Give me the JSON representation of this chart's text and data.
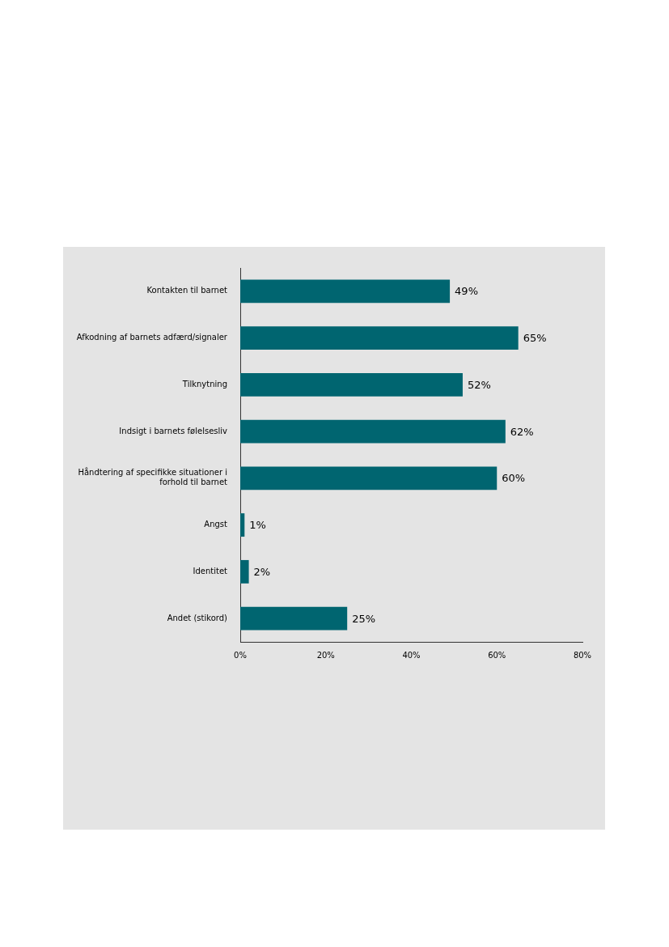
{
  "chart_data": {
    "type": "bar",
    "orientation": "horizontal",
    "categories": [
      "Kontakten til barnet",
      "Afkodning af barnets adfærd/signaler",
      "Tilknytning",
      "Indsigt i barnets følelsesliv",
      "Håndtering af specifikke situationer i forhold til barnet",
      "Angst",
      "Identitet",
      "Andet (stikord)"
    ],
    "values": [
      49,
      65,
      52,
      62,
      60,
      1,
      2,
      25
    ],
    "value_labels": [
      "49%",
      "65%",
      "52%",
      "62%",
      "60%",
      "1%",
      "2%",
      "25%"
    ],
    "color": "#006570",
    "xlim": [
      0,
      80
    ],
    "xticks": [
      {
        "value": 0,
        "label": "0%"
      },
      {
        "value": 20,
        "label": "20%"
      },
      {
        "value": 40,
        "label": "40%"
      },
      {
        "value": 60,
        "label": "60%"
      },
      {
        "value": 80,
        "label": "80%"
      }
    ]
  }
}
